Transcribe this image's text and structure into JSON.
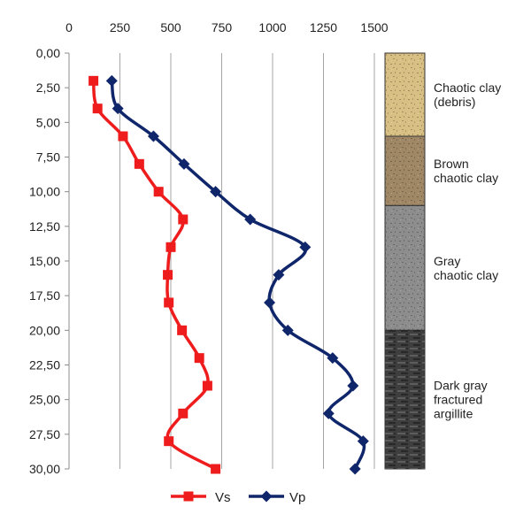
{
  "chart_data": {
    "type": "line",
    "orientation": "depth-profile",
    "x_axis": {
      "position": "top",
      "ticks": [
        0,
        250,
        500,
        750,
        1000,
        1250,
        1500
      ],
      "tick_labels": [
        "0",
        "250",
        "500",
        "750",
        "1000",
        "1250",
        "1500"
      ],
      "range": [
        0,
        1500
      ]
    },
    "y_axis": {
      "inverted": true,
      "ticks": [
        0,
        2.5,
        5,
        7.5,
        10,
        12.5,
        15,
        17.5,
        20,
        22.5,
        25,
        27.5,
        30
      ],
      "tick_labels": [
        "0,00",
        "2,50",
        "5,00",
        "7,50",
        "10,00",
        "12,50",
        "15,00",
        "17,50",
        "20,00",
        "22,50",
        "25,00",
        "27,50",
        "30,00"
      ],
      "range": [
        0,
        30
      ]
    },
    "grid": {
      "vertical": true,
      "horizontal": false
    },
    "legend": {
      "placement": "bottom"
    },
    "series": [
      {
        "name": "Vs",
        "color": "#ee1c1c",
        "marker": "square",
        "points": [
          {
            "x": 120,
            "y": 2
          },
          {
            "x": 140,
            "y": 4
          },
          {
            "x": 265,
            "y": 6
          },
          {
            "x": 345,
            "y": 8
          },
          {
            "x": 440,
            "y": 10
          },
          {
            "x": 560,
            "y": 12
          },
          {
            "x": 500,
            "y": 14
          },
          {
            "x": 485,
            "y": 16
          },
          {
            "x": 490,
            "y": 18
          },
          {
            "x": 555,
            "y": 20
          },
          {
            "x": 640,
            "y": 22
          },
          {
            "x": 680,
            "y": 24
          },
          {
            "x": 560,
            "y": 26
          },
          {
            "x": 490,
            "y": 28
          },
          {
            "x": 720,
            "y": 30
          }
        ]
      },
      {
        "name": "Vp",
        "color": "#10266b",
        "marker": "diamond",
        "points": [
          {
            "x": 210,
            "y": 2
          },
          {
            "x": 240,
            "y": 4
          },
          {
            "x": 415,
            "y": 6
          },
          {
            "x": 565,
            "y": 8
          },
          {
            "x": 720,
            "y": 10
          },
          {
            "x": 890,
            "y": 12
          },
          {
            "x": 1160,
            "y": 14
          },
          {
            "x": 1030,
            "y": 16
          },
          {
            "x": 985,
            "y": 18
          },
          {
            "x": 1075,
            "y": 20
          },
          {
            "x": 1295,
            "y": 22
          },
          {
            "x": 1395,
            "y": 24
          },
          {
            "x": 1275,
            "y": 26
          },
          {
            "x": 1445,
            "y": 28
          },
          {
            "x": 1405,
            "y": 30
          }
        ]
      }
    ],
    "layers": [
      {
        "top": 0,
        "bottom": 6,
        "label_lines": [
          "Chaotic clay",
          "(debris)"
        ],
        "color": "#d8bf83",
        "pattern": "speckle"
      },
      {
        "top": 6,
        "bottom": 11,
        "label_lines": [
          "Brown",
          "chaotic clay"
        ],
        "color": "#a08866",
        "pattern": "speckle"
      },
      {
        "top": 11,
        "bottom": 20,
        "label_lines": [
          "Gray",
          "chaotic clay"
        ],
        "color": "#8d8d8d",
        "pattern": "speckle"
      },
      {
        "top": 20,
        "bottom": 30,
        "label_lines": [
          "Dark gray",
          "fractured",
          "argillite"
        ],
        "color": "#3e3e3e",
        "pattern": "brick"
      }
    ]
  }
}
